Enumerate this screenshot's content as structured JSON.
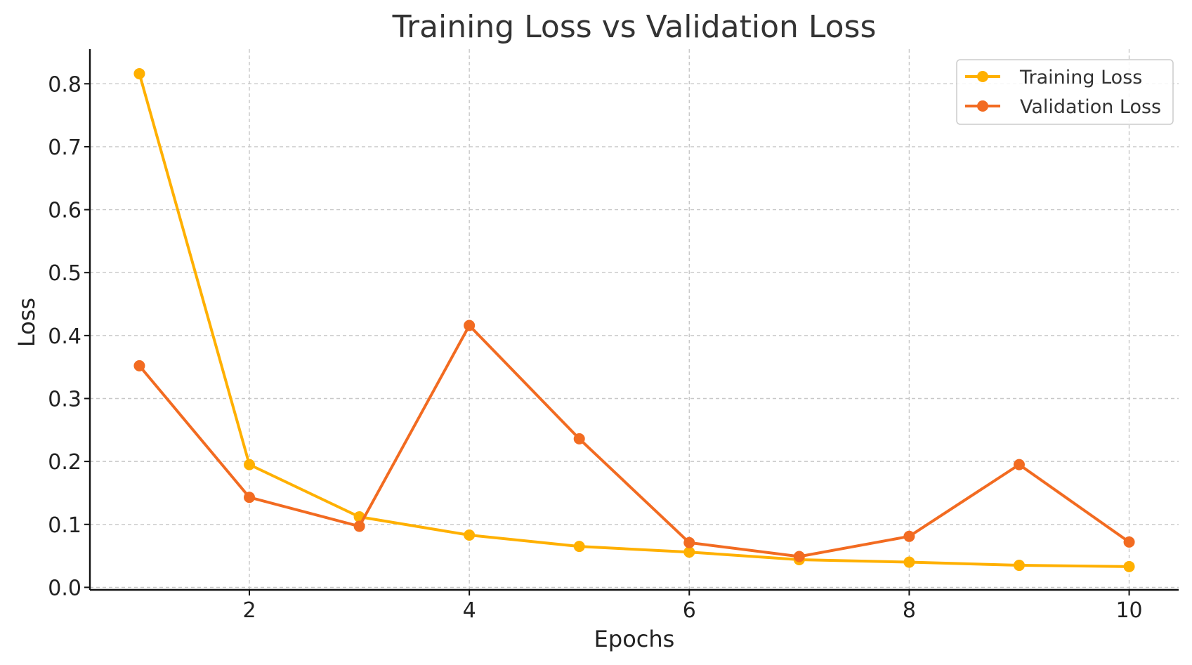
{
  "chart_data": {
    "type": "line",
    "title": "Training Loss vs Validation Loss",
    "xlabel": "Epochs",
    "ylabel": "Loss",
    "x": [
      1,
      2,
      3,
      4,
      5,
      6,
      7,
      8,
      9,
      10
    ],
    "xlim": [
      0.55,
      10.45
    ],
    "ylim": [
      -0.004,
      0.855
    ],
    "xticks": [
      2,
      4,
      6,
      8,
      10
    ],
    "yticks": [
      0.0,
      0.1,
      0.2,
      0.3,
      0.4,
      0.5,
      0.6,
      0.7,
      0.8
    ],
    "ytick_labels": [
      "0.0",
      "0.1",
      "0.2",
      "0.3",
      "0.4",
      "0.5",
      "0.6",
      "0.7",
      "0.8"
    ],
    "grid": true,
    "legend_position": "top-right",
    "series": [
      {
        "name": "Training Loss",
        "color": "#FFB000",
        "marker": "circle",
        "values": [
          0.816,
          0.195,
          0.112,
          0.083,
          0.065,
          0.056,
          0.044,
          0.04,
          0.035,
          0.033
        ]
      },
      {
        "name": "Validation Loss",
        "color": "#F26B21",
        "marker": "circle",
        "values": [
          0.352,
          0.143,
          0.097,
          0.416,
          0.236,
          0.071,
          0.049,
          0.081,
          0.195,
          0.072
        ]
      }
    ]
  }
}
